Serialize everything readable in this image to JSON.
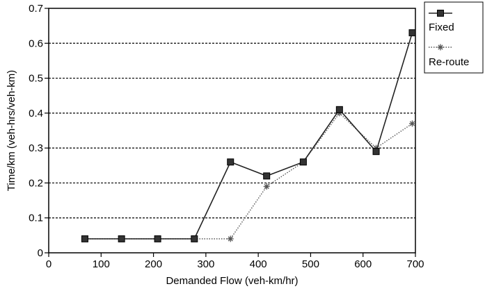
{
  "chart_data": {
    "type": "line",
    "title": "",
    "xlabel": "Demanded Flow (veh-km/hr)",
    "ylabel": "Time/km (veh-hrs/veh-km)",
    "xlim": [
      0,
      700
    ],
    "ylim": [
      0,
      0.7
    ],
    "x_ticks": [
      "0",
      "100",
      "200",
      "300",
      "400",
      "500",
      "600",
      "700"
    ],
    "y_ticks": [
      "0",
      "0.1",
      "0.2",
      "0.3",
      "0.4",
      "0.5",
      "0.6",
      "0.7"
    ],
    "grid": "horizontal-dashed",
    "legend_position": "top-right-outside",
    "x": [
      69,
      139,
      208,
      278,
      347,
      416,
      486,
      555,
      625,
      694
    ],
    "series": [
      {
        "name": "Fixed",
        "marker": "square",
        "line_style": "solid",
        "values": [
          0.04,
          0.04,
          0.04,
          0.04,
          0.26,
          0.22,
          0.26,
          0.41,
          0.29,
          0.63
        ]
      },
      {
        "name": "Re-route",
        "marker": "star",
        "line_style": "dotted",
        "values": [
          0.04,
          0.04,
          0.04,
          0.04,
          0.04,
          0.19,
          0.26,
          0.4,
          0.3,
          0.37
        ]
      }
    ]
  }
}
